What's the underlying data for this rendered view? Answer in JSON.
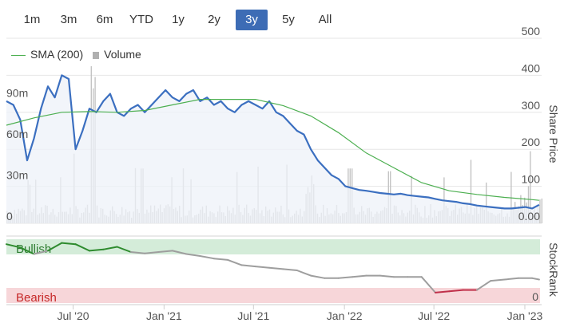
{
  "range_selector": {
    "buttons": [
      {
        "label": "1m",
        "active": false
      },
      {
        "label": "3m",
        "active": false
      },
      {
        "label": "6m",
        "active": false
      },
      {
        "label": "YTD",
        "active": false
      },
      {
        "label": "1y",
        "active": false
      },
      {
        "label": "2y",
        "active": false
      },
      {
        "label": "3y",
        "active": true
      },
      {
        "label": "5y",
        "active": false
      },
      {
        "label": "All",
        "active": false
      }
    ]
  },
  "legend": {
    "sma_label": "SMA (200)",
    "volume_label": "Volume"
  },
  "colors": {
    "price_line": "#3b6fc0",
    "price_fill": "#eef1f8",
    "sma_line": "#4caf50",
    "volume_bars": "#c4c4c4",
    "bullish_band": "#d4ecd9",
    "bearish_band": "#f7d6d9",
    "bullish_text": "#2e7d32",
    "bearish_text": "#c62828",
    "stockrank_neutral": "#9e9e9e",
    "stockrank_bull": "#2e8b2e",
    "stockrank_bear": "#c0304a",
    "active_button": "#3d6cb5"
  },
  "chart_data": [
    {
      "type": "line",
      "x_ticks": [
        "Jul '20",
        "Jan '21",
        "Jul '21",
        "Jan '22",
        "Jul '22",
        "Jan '23"
      ],
      "y_right_ticks": [
        "500",
        "400",
        "300",
        "200",
        "100",
        "0.00"
      ],
      "y_right_label": "Share Price",
      "y_right_range": [
        0,
        500
      ],
      "volume_ticks": [
        "90m",
        "60m",
        "30m",
        "0"
      ],
      "volume_range": [
        0,
        135
      ],
      "series": [
        {
          "name": "Share Price",
          "x": [
            "2020-02-17",
            "2020-03-02",
            "2020-03-16",
            "2020-03-30",
            "2020-04-13",
            "2020-04-27",
            "2020-05-11",
            "2020-05-25",
            "2020-06-08",
            "2020-06-22",
            "2020-07-06",
            "2020-07-20",
            "2020-08-03",
            "2020-08-17",
            "2020-08-31",
            "2020-09-14",
            "2020-09-28",
            "2020-10-12",
            "2020-10-26",
            "2020-11-09",
            "2020-11-23",
            "2020-12-07",
            "2020-12-21",
            "2021-01-04",
            "2021-01-18",
            "2021-02-01",
            "2021-02-15",
            "2021-03-01",
            "2021-03-15",
            "2021-03-29",
            "2021-04-12",
            "2021-04-26",
            "2021-05-10",
            "2021-05-24",
            "2021-06-07",
            "2021-06-21",
            "2021-07-05",
            "2021-07-19",
            "2021-08-02",
            "2021-08-16",
            "2021-08-30",
            "2021-09-13",
            "2021-09-27",
            "2021-10-11",
            "2021-10-25",
            "2021-11-08",
            "2021-11-22",
            "2021-12-06",
            "2021-12-20",
            "2022-01-03",
            "2022-01-17",
            "2022-01-31",
            "2022-02-14",
            "2022-02-28",
            "2022-03-14",
            "2022-03-28",
            "2022-04-11",
            "2022-04-25",
            "2022-05-09",
            "2022-05-23",
            "2022-06-06",
            "2022-06-20",
            "2022-07-04",
            "2022-07-18",
            "2022-08-01",
            "2022-08-15",
            "2022-08-29",
            "2022-09-12",
            "2022-09-26",
            "2022-10-10",
            "2022-10-24",
            "2022-11-07",
            "2022-11-21",
            "2022-12-05",
            "2022-12-19",
            "2023-01-02",
            "2023-01-16",
            "2023-01-30"
          ],
          "values": [
            330,
            320,
            280,
            170,
            230,
            310,
            370,
            340,
            400,
            390,
            200,
            250,
            310,
            300,
            330,
            350,
            300,
            290,
            310,
            320,
            300,
            320,
            340,
            360,
            340,
            330,
            350,
            360,
            330,
            340,
            320,
            330,
            310,
            300,
            320,
            330,
            320,
            310,
            330,
            300,
            290,
            270,
            250,
            240,
            200,
            170,
            150,
            130,
            120,
            100,
            95,
            90,
            88,
            85,
            82,
            80,
            78,
            80,
            76,
            74,
            72,
            70,
            66,
            62,
            60,
            58,
            54,
            52,
            48,
            46,
            44,
            42,
            40,
            40,
            42,
            44,
            40,
            50
          ]
        },
        {
          "name": "SMA (200)",
          "x": [
            "2020-02-17",
            "2020-04-13",
            "2020-06-08",
            "2020-08-03",
            "2020-09-28",
            "2020-11-23",
            "2021-01-18",
            "2021-03-15",
            "2021-05-10",
            "2021-07-05",
            "2021-08-30",
            "2021-10-25",
            "2021-12-20",
            "2022-02-14",
            "2022-04-11",
            "2022-06-06",
            "2022-08-01",
            "2022-09-26",
            "2022-11-21",
            "2023-01-16",
            "2023-01-30"
          ],
          "values": [
            265,
            285,
            300,
            302,
            300,
            305,
            320,
            335,
            335,
            335,
            318,
            290,
            245,
            190,
            150,
            110,
            88,
            78,
            70,
            64,
            62
          ]
        }
      ]
    },
    {
      "type": "line",
      "title": "StockRank",
      "y_ticks": [
        "0"
      ],
      "zones": [
        {
          "label": "Bullish"
        },
        {
          "label": "Bearish"
        }
      ],
      "y_range": [
        0,
        100
      ],
      "series": [
        {
          "x": [
            "2020-02-17",
            "2020-03-16",
            "2020-04-13",
            "2020-05-11",
            "2020-06-08",
            "2020-07-06",
            "2020-08-03",
            "2020-08-31",
            "2020-09-28",
            "2020-10-26",
            "2020-11-23",
            "2020-12-21",
            "2021-01-18",
            "2021-02-15",
            "2021-03-15",
            "2021-04-12",
            "2021-05-10",
            "2021-06-07",
            "2021-07-05",
            "2021-08-02",
            "2021-08-30",
            "2021-09-27",
            "2021-10-25",
            "2021-11-22",
            "2021-12-20",
            "2022-01-17",
            "2022-02-14",
            "2022-03-14",
            "2022-04-11",
            "2022-05-09",
            "2022-06-06",
            "2022-07-04",
            "2022-08-01",
            "2022-08-29",
            "2022-09-26",
            "2022-10-24",
            "2022-11-21",
            "2022-12-19",
            "2023-01-16",
            "2023-01-30"
          ],
          "values": [
            90,
            85,
            75,
            80,
            92,
            90,
            80,
            82,
            86,
            78,
            76,
            78,
            80,
            75,
            72,
            68,
            66,
            58,
            56,
            54,
            52,
            50,
            42,
            38,
            38,
            40,
            42,
            42,
            40,
            40,
            40,
            16,
            18,
            20,
            20,
            34,
            36,
            38,
            38,
            36
          ]
        }
      ]
    }
  ]
}
